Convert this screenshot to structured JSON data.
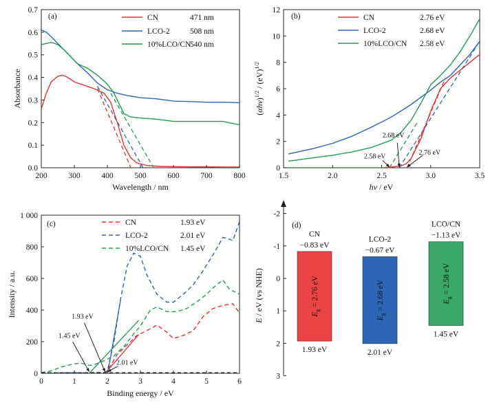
{
  "chart_data": [
    {
      "type": "line",
      "panel": "(a)",
      "xlabel": "Wavelength / nm",
      "ylabel": "Absorbance",
      "xlim": [
        200,
        800
      ],
      "ylim": [
        0,
        0.7
      ],
      "xticks": [
        "200",
        "300",
        "400",
        "500",
        "600",
        "700",
        "800"
      ],
      "yticks": [
        "0.0",
        "0.1",
        "0.2",
        "0.3",
        "0.4",
        "0.5",
        "0.6",
        "0.7"
      ],
      "legend_position": "top-right",
      "series": [
        {
          "name": "CN",
          "value_label": "471 nm",
          "color": "#e8312f",
          "x": [
            200,
            215,
            230,
            250,
            265,
            280,
            300,
            330,
            360,
            390,
            410,
            430,
            450,
            470,
            490,
            520,
            560,
            600,
            650,
            700,
            750,
            800
          ],
          "y": [
            0.26,
            0.33,
            0.38,
            0.405,
            0.41,
            0.4,
            0.38,
            0.365,
            0.35,
            0.33,
            0.29,
            0.2,
            0.1,
            0.045,
            0.02,
            0.01,
            0.006,
            0.005,
            0.004,
            0.004,
            0.003,
            0.003
          ]
        },
        {
          "name": "LCO-2",
          "value_label": "508 nm",
          "color": "#2c62b8",
          "x": [
            200,
            215,
            230,
            250,
            270,
            290,
            310,
            340,
            370,
            400,
            430,
            460,
            500,
            550,
            600,
            650,
            700,
            750,
            800
          ],
          "y": [
            0.61,
            0.6,
            0.58,
            0.55,
            0.52,
            0.49,
            0.46,
            0.42,
            0.375,
            0.345,
            0.33,
            0.32,
            0.31,
            0.305,
            0.295,
            0.293,
            0.29,
            0.29,
            0.288
          ]
        },
        {
          "name": "10%LCO/CN",
          "value_label": "540 nm",
          "color": "#1e9c50",
          "x": [
            200,
            215,
            230,
            250,
            270,
            290,
            310,
            340,
            370,
            400,
            420,
            440,
            450,
            470,
            500,
            550,
            600,
            650,
            700,
            750,
            800
          ],
          "y": [
            0.545,
            0.55,
            0.555,
            0.545,
            0.52,
            0.49,
            0.46,
            0.44,
            0.41,
            0.37,
            0.33,
            0.27,
            0.24,
            0.225,
            0.22,
            0.215,
            0.205,
            0.205,
            0.205,
            0.205,
            0.19
          ]
        }
      ],
      "tangents": [
        {
          "series": "CN",
          "x": [
            370,
            471
          ],
          "y": [
            0.35,
            0
          ]
        },
        {
          "series": "LCO-2",
          "x": [
            370,
            508
          ],
          "y": [
            0.36,
            0
          ]
        },
        {
          "series": "10%LCO/CN",
          "x": [
            410,
            540
          ],
          "y": [
            0.33,
            0
          ]
        }
      ]
    },
    {
      "type": "line",
      "panel": "(b)",
      "xlabel": "hν / eV",
      "ylabel": "(αhν)^1/2 / (eV)^1/2",
      "xlim": [
        1.5,
        3.5
      ],
      "ylim": [
        0,
        12
      ],
      "xticks": [
        "1.5",
        "2.0",
        "2.5",
        "3.0",
        "3.5"
      ],
      "yticks": [
        "0",
        "2",
        "4",
        "6",
        "8",
        "10",
        "12"
      ],
      "legend_position": "top-left",
      "series": [
        {
          "name": "CN",
          "value_label": "2.76 eV",
          "color": "#e8312f",
          "x": [
            1.5,
            1.8,
            2.2,
            2.5,
            2.6,
            2.7,
            2.75,
            2.8,
            2.9,
            3.0,
            3.1,
            3.2,
            3.3,
            3.4,
            3.5
          ],
          "y": [
            0,
            0,
            0,
            0,
            0.05,
            0.15,
            0.3,
            0.7,
            2.2,
            4.3,
            6.0,
            6.8,
            7.4,
            8.0,
            8.6
          ]
        },
        {
          "name": "LCO-2",
          "value_label": "2.68 eV",
          "color": "#2c62b8",
          "x": [
            1.55,
            1.8,
            2.0,
            2.2,
            2.4,
            2.6,
            2.8,
            3.0,
            3.1,
            3.2,
            3.3,
            3.4,
            3.5
          ],
          "y": [
            1.05,
            1.45,
            1.85,
            2.4,
            3.1,
            3.85,
            4.8,
            5.9,
            6.5,
            7.0,
            7.8,
            8.6,
            9.6
          ]
        },
        {
          "name": "10%LCO/CN",
          "value_label": "2.58 eV",
          "color": "#1e9c50",
          "x": [
            1.55,
            1.8,
            2.0,
            2.2,
            2.4,
            2.6,
            2.7,
            2.8,
            2.9,
            3.0,
            3.1,
            3.2,
            3.3,
            3.4,
            3.5
          ],
          "y": [
            0.5,
            0.75,
            0.95,
            1.2,
            1.55,
            2.1,
            2.7,
            3.6,
            4.9,
            6.3,
            7.0,
            7.8,
            8.8,
            10.0,
            11.3
          ]
        }
      ],
      "tangents": [
        {
          "series": "CN",
          "x": [
            2.76,
            3.15
          ],
          "y": [
            0,
            6.8
          ]
        },
        {
          "series": "LCO-2",
          "x": [
            2.68,
            3.5
          ],
          "y": [
            0,
            9.6
          ]
        },
        {
          "series": "10%LCO/CN",
          "x": [
            2.58,
            2.86
          ],
          "y": [
            0,
            3.4
          ]
        }
      ],
      "annotations": [
        {
          "text": "2.68 eV",
          "x": 2.62,
          "y": 2.3
        },
        {
          "text": "2.58 eV",
          "x": 2.43,
          "y": 0.7
        },
        {
          "text": "2.76 eV",
          "x": 2.99,
          "y": 1.0
        }
      ]
    },
    {
      "type": "line",
      "panel": "(c)",
      "xlabel": "Binding energy / eV",
      "ylabel": "Intensity / a.u.",
      "xlim": [
        0,
        6
      ],
      "ylim": [
        0,
        1000
      ],
      "xticks": [
        "0",
        "1",
        "2",
        "3",
        "4",
        "5",
        "6"
      ],
      "yticks": [
        "0",
        "200",
        "400",
        "600",
        "800",
        "1 000"
      ],
      "legend_position": "top-center",
      "series": [
        {
          "name": "CN",
          "value_label": "1.93 eV",
          "color": "#e8312f",
          "x": [
            0,
            0.5,
            1.0,
            1.5,
            1.9,
            2.0,
            2.3,
            2.6,
            2.9,
            3.2,
            3.5,
            3.8,
            4.0,
            4.3,
            4.6,
            4.9,
            5.2,
            5.5,
            5.8,
            6.0
          ],
          "y": [
            3,
            3,
            4,
            4,
            6,
            15,
            120,
            180,
            240,
            270,
            305,
            260,
            220,
            240,
            270,
            360,
            410,
            430,
            440,
            380
          ]
        },
        {
          "name": "LCO-2",
          "value_label": "2.01 eV",
          "color": "#2c62b8",
          "x": [
            0,
            0.5,
            1.0,
            1.5,
            1.9,
            2.0,
            2.2,
            2.4,
            2.6,
            2.8,
            3.0,
            3.2,
            3.5,
            3.8,
            4.0,
            4.3,
            4.6,
            4.9,
            5.2,
            5.5,
            5.8,
            6.0
          ],
          "y": [
            3,
            3,
            3,
            4,
            5,
            15,
            200,
            470,
            680,
            760,
            740,
            620,
            500,
            450,
            450,
            500,
            560,
            650,
            750,
            860,
            840,
            960
          ]
        },
        {
          "name": "10%LCO/CN",
          "value_label": "1.45 eV",
          "color": "#1e9c50",
          "x": [
            0,
            0.3,
            0.6,
            1.0,
            1.2,
            1.45,
            1.6,
            1.9,
            2.2,
            2.5,
            2.8,
            3.0,
            3.3,
            3.5,
            3.8,
            4.1,
            4.4,
            4.7,
            5.0,
            5.3,
            5.5,
            5.7,
            6.0
          ],
          "y": [
            5,
            15,
            40,
            60,
            65,
            50,
            55,
            80,
            110,
            170,
            250,
            300,
            400,
            420,
            390,
            390,
            410,
            450,
            500,
            560,
            590,
            530,
            500
          ]
        }
      ],
      "tangents": [
        {
          "series": "CN",
          "x": [
            1.93,
            2.95
          ],
          "y": [
            0,
            245
          ]
        },
        {
          "series": "LCO-2",
          "x": [
            2.01,
            2.4
          ],
          "y": [
            0,
            465
          ]
        },
        {
          "series": "10%LCO/CN",
          "x": [
            1.45,
            2.95
          ],
          "y": [
            0,
            335
          ]
        }
      ],
      "annotations": [
        {
          "text": "1.93 eV",
          "x": 1.25,
          "y": 345
        },
        {
          "text": "1.45 eV",
          "x": 0.85,
          "y": 225
        },
        {
          "text": "2.01 eV",
          "x": 2.6,
          "y": 55
        }
      ]
    },
    {
      "type": "bar",
      "panel": "(d)",
      "ylabel": "E / eV (vs NHE)",
      "ylim": [
        3,
        -2
      ],
      "yticks": [
        "-2",
        "-1",
        "0",
        "1",
        "2",
        "3"
      ],
      "categories": [
        "CN",
        "LCO-2",
        "LCO/CN"
      ],
      "bars": [
        {
          "label": "CN",
          "cb": -0.83,
          "vb": 1.93,
          "cb_label": "−0.83 eV",
          "vb_label": "1.93 eV",
          "gap_label": "2.76 eV",
          "color": "#ec4345"
        },
        {
          "label": "LCO-2",
          "cb": -0.67,
          "vb": 2.01,
          "cb_label": "−0.67 eV",
          "vb_label": "2.01 eV",
          "gap_label": "2.68 eV",
          "color": "#2e66b6"
        },
        {
          "label": "LCO/CN",
          "cb": -1.13,
          "vb": 1.45,
          "cb_label": "−1.13 eV",
          "vb_label": "1.45 eV",
          "gap_label": "2.58 eV",
          "color": "#3aa866"
        }
      ]
    }
  ]
}
